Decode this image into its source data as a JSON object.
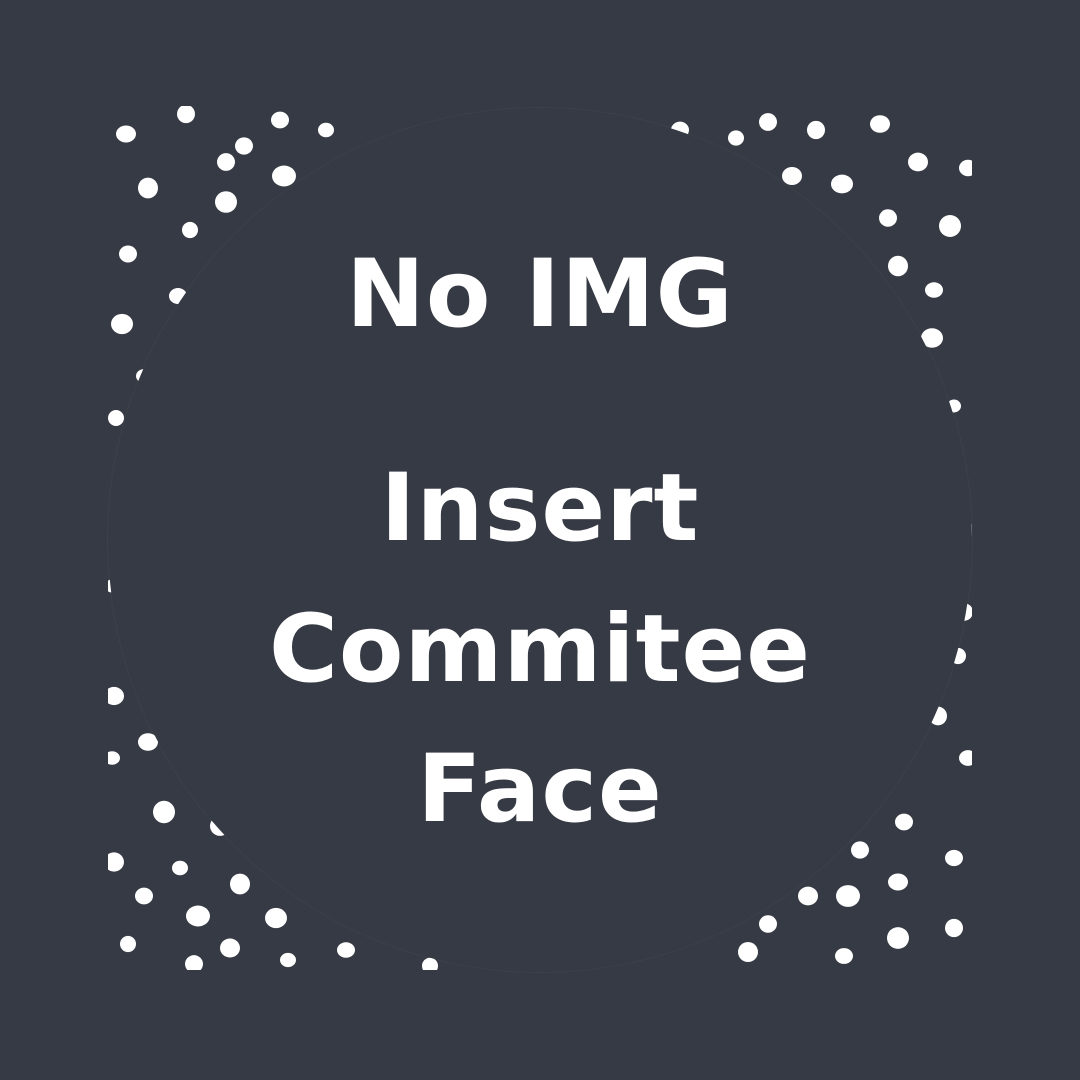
{
  "placeholder": {
    "line1": "No IMG",
    "line2": "Insert",
    "line3": "Commitee",
    "line4": "Face"
  },
  "colors": {
    "background": "#363a44",
    "text": "#ffffff",
    "dots": "#ffffff"
  }
}
